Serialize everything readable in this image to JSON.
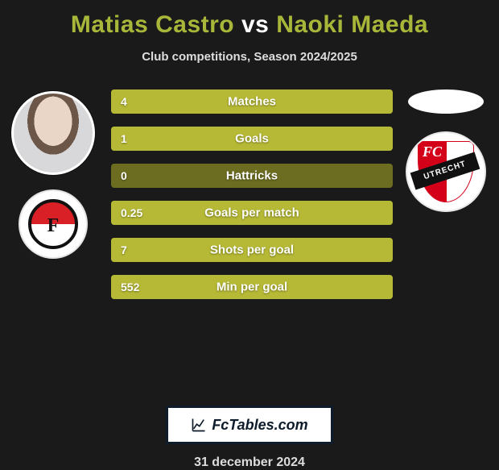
{
  "title_parts": {
    "p1": "Matias Castro",
    "vs": "vs",
    "p2": "Naoki Maeda"
  },
  "title_colors": {
    "p1": "#a8b739",
    "vs": "#ffffff",
    "p2": "#a8b739"
  },
  "subtitle": "Club competitions, Season 2024/2025",
  "stats": [
    {
      "value": "4",
      "label": "Matches",
      "fill_pct": 100
    },
    {
      "value": "1",
      "label": "Goals",
      "fill_pct": 100
    },
    {
      "value": "0",
      "label": "Hattricks",
      "fill_pct": 0
    },
    {
      "value": "0.25",
      "label": "Goals per match",
      "fill_pct": 100
    },
    {
      "value": "7",
      "label": "Shots per goal",
      "fill_pct": 100
    },
    {
      "value": "552",
      "label": "Min per goal",
      "fill_pct": 100
    }
  ],
  "bar_colors": {
    "track": "#7f8024",
    "fill": "#b6b935",
    "empty_track": "#6c6d20"
  },
  "brand": "FcTables.com",
  "date": "31 december 2024",
  "utrecht_text": "UTRECHT"
}
